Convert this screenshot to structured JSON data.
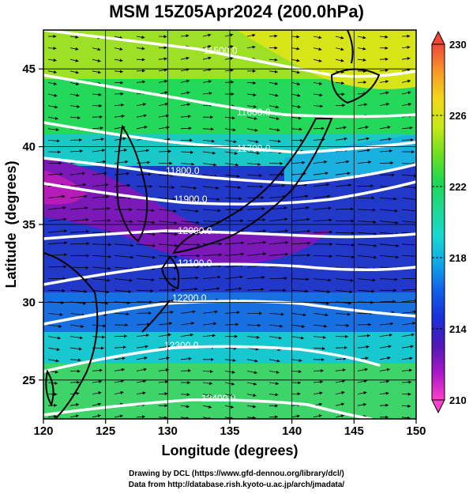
{
  "title": "MSM 15Z05Apr2024 (200.0hPa)",
  "x_axis": {
    "label": "Longitude (degrees)",
    "range": [
      120,
      150
    ],
    "ticks": [
      120,
      125,
      130,
      135,
      140,
      145,
      150
    ]
  },
  "y_axis": {
    "label": "Latitude  (degrees)",
    "range": [
      22.5,
      47.5
    ],
    "ticks": [
      25,
      30,
      35,
      40,
      45
    ]
  },
  "colorbar": {
    "range": [
      210,
      230
    ],
    "tick_labels": [
      "230",
      "226",
      "222",
      "218",
      "214",
      "210"
    ],
    "colors": [
      "#ff40c8",
      "#a818c8",
      "#5018b8",
      "#1830d8",
      "#1060e8",
      "#10a8e8",
      "#18d8d0",
      "#20d890",
      "#20d850",
      "#70e020",
      "#c8e818",
      "#f0d818",
      "#f89828",
      "#f04838"
    ]
  },
  "contours": [
    {
      "label": "11500.0"
    },
    {
      "label": "11600.0"
    },
    {
      "label": "11700.0"
    },
    {
      "label": "11800.0"
    },
    {
      "label": "11900.0"
    },
    {
      "label": "12000.0"
    },
    {
      "label": "12100.0"
    },
    {
      "label": "12200.0"
    },
    {
      "label": "12300.0"
    },
    {
      "label": "12400.0"
    }
  ],
  "credits": {
    "line1": "Drawing by DCL (https://www.gfd-dennou.org/library/dcl/)",
    "line2": "Data from http://database.rish.kyoto-u.ac.jp/arch/jmadata/"
  },
  "chart_data": {
    "type": "heatmap",
    "title": "MSM 15Z05Apr2024 (200.0hPa)",
    "xlabel": "Longitude (degrees)",
    "ylabel": "Latitude  (degrees)",
    "xlim": [
      120,
      150
    ],
    "ylim": [
      22.5,
      47.5
    ],
    "color_range": [
      210,
      230
    ],
    "contour_levels": [
      11500,
      11600,
      11700,
      11800,
      11900,
      12000,
      12100,
      12200,
      12300,
      12400
    ],
    "grid": true
  }
}
